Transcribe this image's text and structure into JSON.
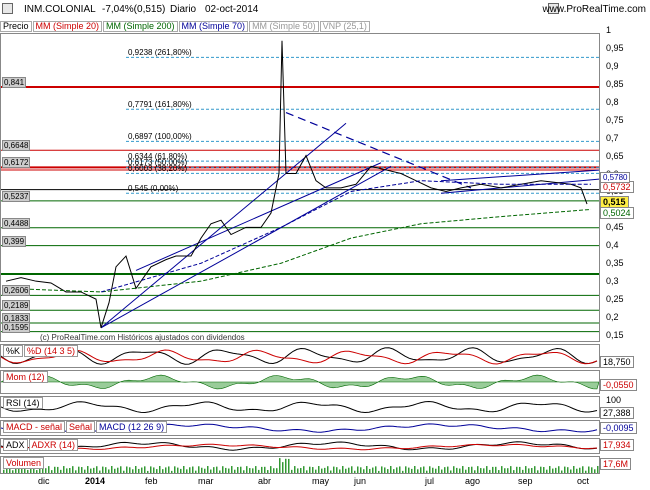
{
  "header": {
    "title": "INM.COLONIAL",
    "change": "-7,04%(0,515)",
    "period": "Diario",
    "date": "02-oct-2014",
    "brand": "www.ProRealTime.com"
  },
  "indicators": [
    "Precio",
    "MM (Simple 20)",
    "MM (Simple 200)",
    "MM (Simple 70)",
    "MM (Simple 50)",
    "VNP (25,1)"
  ],
  "indicator_colors": [
    "#000000",
    "#cc0000",
    "#006600",
    "#000099",
    "#999999",
    "#999999"
  ],
  "price_axis": [
    "1",
    "0,95",
    "0,9",
    "0,85",
    "0,8",
    "0,75",
    "0,7",
    "0,65",
    "0,6",
    "0,55",
    "0,5",
    "0,45",
    "0,4",
    "0,35",
    "0,3",
    "0,25",
    "0,2",
    "0,15"
  ],
  "price_badges": {
    "p1": "0,5732",
    "p2": "0,515",
    "p3": "0,5024",
    "p4": "0,5780"
  },
  "fib_levels": [
    "0,9238 (261,80%)",
    "0,7791 (161,80%)",
    "0,6897 (100,00%)",
    "0,6344 (61,80%)",
    "0,6173 (50,00%)",
    "0,6003 (38,20%)",
    "0,545 (0,00%)"
  ],
  "hist_levels": [
    "0,841",
    "0,6648",
    "0,6172",
    "0,5237",
    "0,4488",
    "0,399",
    "0,2606",
    "0,2189",
    "0,1833",
    "0,1595"
  ],
  "watermark": "(c) ProRealTime.com   Históricos ajustados con dividendos",
  "panels": {
    "stoch": {
      "labels": [
        "%K",
        "%D (14 3 5)"
      ],
      "value": "18,750"
    },
    "mom": {
      "labels": [
        "Mom (12)"
      ],
      "value": "-0,0550"
    },
    "rsi": {
      "labels": [
        "RSI (14)"
      ],
      "value": "27,388",
      "level": "100"
    },
    "macd": {
      "labels": [
        "MACD - señal",
        "Señal",
        "MACD (12 26 9)"
      ],
      "value": "-0,0095"
    },
    "adx": {
      "labels": [
        "ADX",
        "ADXR (14)"
      ],
      "value": "17,934"
    },
    "vol": {
      "labels": [
        "Volumen"
      ],
      "value": "17,6M"
    }
  },
  "x_axis": [
    "dic",
    "2014",
    "feb",
    "mar",
    "abr",
    "may",
    "jun",
    "jul",
    "ago",
    "sep",
    "oct"
  ],
  "chart_data": {
    "type": "line",
    "title": "INM.COLONIAL",
    "x": [
      "dic",
      "2014",
      "feb",
      "mar",
      "abr",
      "may",
      "jun",
      "jul",
      "ago",
      "sep",
      "oct"
    ],
    "series": [
      {
        "name": "Precio",
        "values": [
          0.28,
          0.25,
          0.33,
          0.42,
          0.5,
          0.64,
          0.61,
          0.58,
          0.57,
          0.58,
          0.515
        ]
      },
      {
        "name": "MM (Simple 200)",
        "values": [
          0.26,
          0.26,
          0.27,
          0.3,
          0.34,
          0.4,
          0.45,
          0.48,
          0.49,
          0.5,
          0.5024
        ]
      }
    ],
    "ylim": [
      0.13,
      1.0
    ]
  },
  "colors": {
    "price": "#000000",
    "ma20": "#cc0000",
    "ma200": "#006600",
    "ma70": "#000099",
    "channel": "#000099"
  }
}
